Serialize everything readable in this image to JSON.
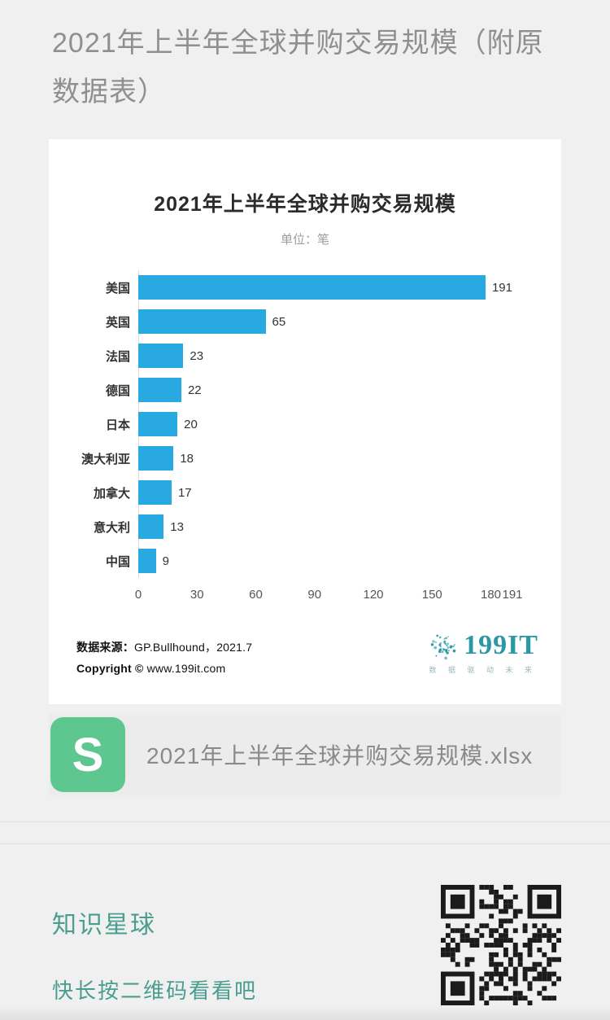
{
  "article": {
    "title": "2021年上半年全球并购交易规模（附原数据表）"
  },
  "chart_card": {
    "title": "2021年上半年全球并购交易规模",
    "subtitle": "单位：笔",
    "source_label": "数据来源：",
    "source_value": "GP.Bullhound，2021.7",
    "copyright_label": "Copyright ©",
    "copyright_value": " www.199it.com",
    "logo_icon": "dandelion-icon",
    "logo_text": "199IT",
    "logo_tagline": "数 据 驱 动 未 来",
    "logo_color": "#2a98a5"
  },
  "chart_data": {
    "type": "bar",
    "orientation": "horizontal",
    "title": "2021年上半年全球并购交易规模",
    "unit_label": "单位：笔",
    "categories": [
      "美国",
      "英国",
      "法国",
      "德国",
      "日本",
      "澳大利亚",
      "加拿大",
      "意大利",
      "中国"
    ],
    "values": [
      191,
      65,
      23,
      22,
      20,
      18,
      17,
      13,
      9
    ],
    "xlim": [
      0,
      191
    ],
    "x_ticks": [
      0,
      30,
      60,
      90,
      120,
      150,
      180,
      191
    ],
    "bar_color": "#29a9e1",
    "grid": false,
    "legend": false
  },
  "attachment": {
    "icon_name": "spreadsheet-icon",
    "icon_letter": "S",
    "icon_color": "#5ec68f",
    "filename": "2021年上半年全球并购交易规模.xlsx"
  },
  "footer": {
    "brand": "知识星球",
    "prompt": "快长按二维码看看吧",
    "accent_color": "#4a9e8f",
    "qr_icon": "qr-code"
  }
}
